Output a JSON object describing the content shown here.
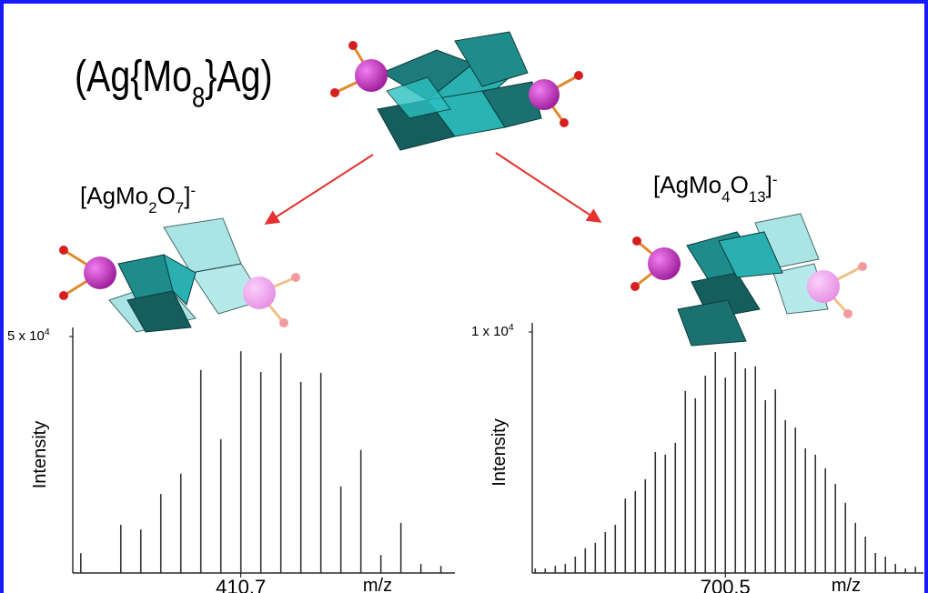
{
  "title": [
    {
      "text": "(Ag{Mo"
    },
    {
      "sub": "8"
    },
    {
      "text": "}Ag)"
    }
  ],
  "fragments": [
    {
      "label": [
        {
          "text": "[AgMo"
        },
        {
          "sub": "2"
        },
        {
          "text": "O"
        },
        {
          "sub": "7"
        },
        {
          "text": "]"
        },
        {
          "sup": "-"
        }
      ]
    },
    {
      "label": [
        {
          "text": "[AgMo"
        },
        {
          "sub": "4"
        },
        {
          "text": "O"
        },
        {
          "sub": "13"
        },
        {
          "text": "]"
        },
        {
          "sup": "-"
        }
      ]
    }
  ],
  "chart_data": [
    {
      "type": "spectrum",
      "y_label": "Intensity",
      "x_label": "m/z",
      "color": "#333333",
      "xlim": [
        402.3,
        421.4
      ],
      "xticks": [
        410.7
      ],
      "ylim": [
        0,
        50000
      ],
      "yticks": [
        {
          "value": 50000,
          "label": "5 x 10",
          "exponent": "4"
        }
      ],
      "x": [
        402.7,
        404.7,
        405.7,
        406.7,
        407.7,
        408.7,
        409.7,
        410.7,
        411.7,
        412.7,
        413.7,
        414.7,
        415.7,
        416.7,
        417.7,
        418.7,
        419.7,
        420.7
      ],
      "values": [
        4200,
        10200,
        9200,
        16700,
        21000,
        42900,
        28300,
        46900,
        42500,
        46500,
        40400,
        42300,
        18300,
        26000,
        3800,
        10600,
        1900,
        1500
      ]
    },
    {
      "type": "spectrum",
      "y_label": "Intensity",
      "x_label": "m/z",
      "color": "#333333",
      "xlim": [
        681.2,
        720.3
      ],
      "xticks": [
        700.5
      ],
      "ylim": [
        0,
        10000
      ],
      "yticks": [
        {
          "value": 10000,
          "label": "1 x 10",
          "exponent": "4"
        }
      ],
      "x": [
        681.5,
        682.5,
        683.5,
        684.5,
        685.5,
        686.5,
        687.5,
        688.5,
        689.5,
        690.5,
        691.5,
        692.5,
        693.5,
        694.5,
        695.5,
        696.5,
        697.5,
        698.5,
        699.5,
        700.5,
        701.5,
        702.5,
        703.5,
        704.5,
        705.5,
        706.5,
        707.5,
        708.5,
        709.5,
        710.5,
        711.5,
        712.5,
        713.5,
        714.5,
        715.5,
        716.5,
        717.5,
        718.5,
        719.5
      ],
      "values": [
        190,
        190,
        300,
        380,
        680,
        1020,
        1250,
        1700,
        2000,
        3090,
        3400,
        3890,
        5020,
        4910,
        5400,
        7550,
        7250,
        8190,
        9170,
        8110,
        9170,
        8490,
        8570,
        7170,
        7620,
        6340,
        6040,
        5170,
        4910,
        4340,
        3700,
        2910,
        2080,
        1510,
        830,
        680,
        380,
        190,
        260
      ]
    }
  ]
}
